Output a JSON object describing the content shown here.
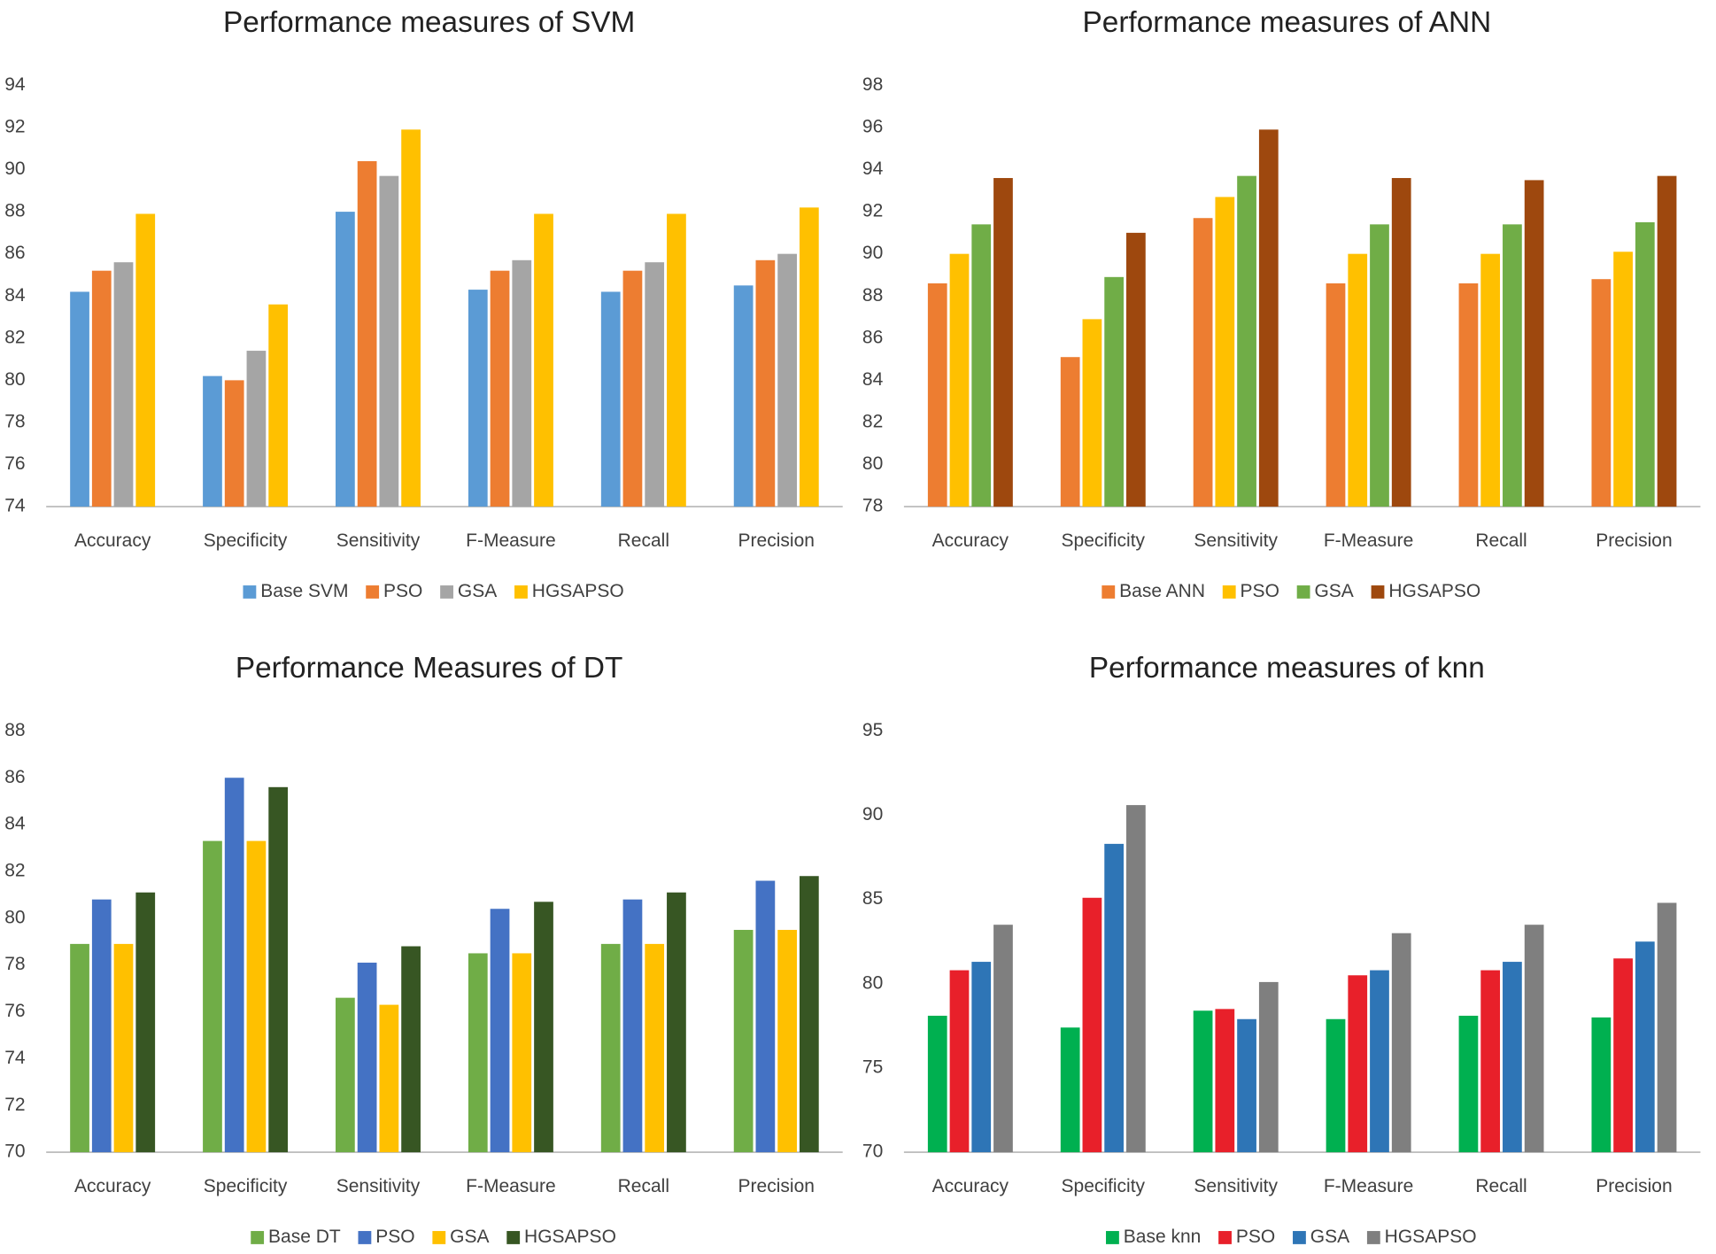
{
  "chart_data": [
    {
      "type": "bar",
      "title": "Performance measures of SVM",
      "categories": [
        "Accuracy",
        "Specificity",
        "Sensitivity",
        "F-Measure",
        "Recall",
        "Precision"
      ],
      "series": [
        {
          "name": "Base SVM",
          "color": "#5b9bd5",
          "values": [
            84.2,
            80.2,
            88.0,
            84.3,
            84.2,
            84.5
          ]
        },
        {
          "name": "PSO",
          "color": "#ed7d31",
          "values": [
            85.2,
            80.0,
            90.4,
            85.2,
            85.2,
            85.7
          ]
        },
        {
          "name": "GSA",
          "color": "#a5a5a5",
          "values": [
            85.6,
            81.4,
            89.7,
            85.7,
            85.6,
            86.0
          ]
        },
        {
          "name": "HGSAPSO",
          "color": "#ffc000",
          "values": [
            87.9,
            83.6,
            91.9,
            87.9,
            87.9,
            88.2
          ]
        }
      ],
      "ylim": [
        74,
        94
      ],
      "yticks": [
        74,
        76,
        78,
        80,
        82,
        84,
        86,
        88,
        90,
        92,
        94
      ],
      "grid": false,
      "legend": "bottom"
    },
    {
      "type": "bar",
      "title": "Performance measures of ANN",
      "categories": [
        "Accuracy",
        "Specificity",
        "Sensitivity",
        "F-Measure",
        "Recall",
        "Precision"
      ],
      "series": [
        {
          "name": "Base ANN",
          "color": "#ed7d31",
          "values": [
            88.6,
            85.1,
            91.7,
            88.6,
            88.6,
            88.8
          ]
        },
        {
          "name": "PSO",
          "color": "#ffc000",
          "values": [
            90.0,
            86.9,
            92.7,
            90.0,
            90.0,
            90.1
          ]
        },
        {
          "name": "GSA",
          "color": "#70ad47",
          "values": [
            91.4,
            88.9,
            93.7,
            91.4,
            91.4,
            91.5
          ]
        },
        {
          "name": "HGSAPSO",
          "color": "#9e480e",
          "values": [
            93.6,
            91.0,
            95.9,
            93.6,
            93.5,
            93.7
          ]
        }
      ],
      "ylim": [
        78,
        98
      ],
      "yticks": [
        78,
        80,
        82,
        84,
        86,
        88,
        90,
        92,
        94,
        96,
        98
      ],
      "grid": false,
      "legend": "bottom"
    },
    {
      "type": "bar",
      "title": "Performance Measures of DT",
      "categories": [
        "Accuracy",
        "Specificity",
        "Sensitivity",
        "F-Measure",
        "Recall",
        "Precision"
      ],
      "series": [
        {
          "name": "Base DT",
          "color": "#70ad47",
          "values": [
            78.9,
            83.3,
            76.6,
            78.5,
            78.9,
            79.5
          ]
        },
        {
          "name": "PSO",
          "color": "#4472c4",
          "values": [
            80.8,
            86.0,
            78.1,
            80.4,
            80.8,
            81.6
          ]
        },
        {
          "name": "GSA",
          "color": "#ffc000",
          "values": [
            78.9,
            83.3,
            76.3,
            78.5,
            78.9,
            79.5
          ]
        },
        {
          "name": "HGSAPSO",
          "color": "#375623",
          "values": [
            81.1,
            85.6,
            78.8,
            80.7,
            81.1,
            81.8
          ]
        }
      ],
      "ylim": [
        70,
        88
      ],
      "yticks": [
        70,
        72,
        74,
        76,
        78,
        80,
        82,
        84,
        86,
        88
      ],
      "grid": false,
      "legend": "bottom"
    },
    {
      "type": "bar",
      "title": "Performance measures of knn",
      "categories": [
        "Accuracy",
        "Specificity",
        "Sensitivity",
        "F-Measure",
        "Recall",
        "Precision"
      ],
      "series": [
        {
          "name": "Base knn",
          "color": "#00b050",
          "values": [
            78.1,
            77.4,
            78.4,
            77.9,
            78.1,
            78.0
          ]
        },
        {
          "name": "PSO",
          "color": "#e8202a",
          "values": [
            80.8,
            85.1,
            78.5,
            80.5,
            80.8,
            81.5
          ]
        },
        {
          "name": "GSA",
          "color": "#2e75b6",
          "values": [
            81.3,
            88.3,
            77.9,
            80.8,
            81.3,
            82.5
          ]
        },
        {
          "name": "HGSAPSO",
          "color": "#7f7f7f",
          "values": [
            83.5,
            90.6,
            80.1,
            83.0,
            83.5,
            84.8
          ]
        }
      ],
      "ylim": [
        70,
        95
      ],
      "yticks": [
        70,
        75,
        80,
        85,
        90,
        95
      ],
      "grid": false,
      "legend": "bottom"
    }
  ]
}
